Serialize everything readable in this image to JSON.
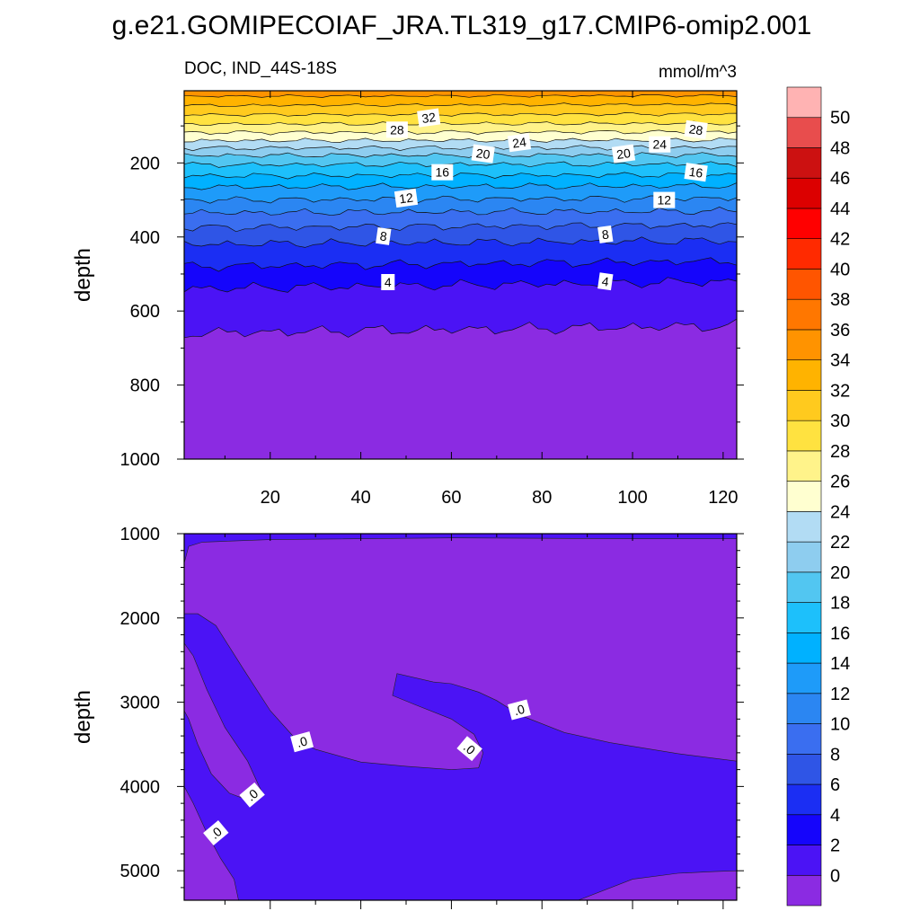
{
  "figure": {
    "title": "g.e21.GOMIPECOIAF_JRA.TL319_g17.CMIP6-omip2.001",
    "variable_label": "DOC, IND_44S-18S",
    "units_label": "mmol/m^3"
  },
  "colorbar": {
    "tick_labels": [
      "0",
      "2",
      "4",
      "6",
      "8",
      "10",
      "12",
      "14",
      "16",
      "18",
      "20",
      "22",
      "24",
      "26",
      "28",
      "30",
      "32",
      "34",
      "36",
      "38",
      "40",
      "42",
      "44",
      "46",
      "48",
      "50"
    ],
    "colors": [
      "#8b2be2",
      "#4b13f5",
      "#1505fb",
      "#1b2ef3",
      "#2f55e6",
      "#3a6ef0",
      "#2b86f2",
      "#1e9bf9",
      "#00b1ff",
      "#1dc0fb",
      "#52c6f1",
      "#8ecdef",
      "#b2dcf4",
      "#ffffd0",
      "#fff38a",
      "#ffe240",
      "#ffca1e",
      "#ffb300",
      "#ff9300",
      "#ff7700",
      "#ff5500",
      "#ff2a00",
      "#ff0000",
      "#dc0000",
      "#cc1111",
      "#e84d4d",
      "#ffb3b3"
    ]
  },
  "chart_data": [
    {
      "type": "contour",
      "panel": "upper",
      "xlabel": "",
      "ylabel": "depth",
      "xlim": [
        1,
        123
      ],
      "ylim": [
        1000,
        5
      ],
      "x_ticks": [
        20,
        40,
        60,
        80,
        100,
        120
      ],
      "x_tick_labels": [
        "20",
        "40",
        "60",
        "80",
        "100",
        "120"
      ],
      "y_ticks": [
        200,
        400,
        600,
        800,
        1000
      ],
      "y_tick_labels": [
        "200",
        "400",
        "600",
        "800",
        "1000"
      ],
      "contour_levels": [
        0,
        2,
        4,
        6,
        8,
        10,
        12,
        14,
        16,
        18,
        20,
        22,
        24,
        26,
        28,
        30,
        32,
        34
      ],
      "isoline_depths": {
        "levels": [
          0,
          2,
          4,
          6,
          8,
          10,
          12,
          14,
          16,
          18,
          20,
          22,
          24,
          26,
          28,
          30,
          32,
          34
        ],
        "left": [
          660,
          540,
          480,
          420,
          375,
          335,
          300,
          265,
          235,
          205,
          180,
          160,
          140,
          118,
          95,
          70,
          45,
          20
        ],
        "right": [
          640,
          520,
          465,
          410,
          368,
          330,
          295,
          262,
          232,
          203,
          178,
          158,
          138,
          116,
          93,
          68,
          42,
          18
        ]
      },
      "contour_labels": [
        {
          "text": "32",
          "x": 55,
          "depth": 78
        },
        {
          "text": "28",
          "x": 48,
          "depth": 110
        },
        {
          "text": "28",
          "x": 114,
          "depth": 110
        },
        {
          "text": "24",
          "x": 75,
          "depth": 145
        },
        {
          "text": "24",
          "x": 106,
          "depth": 150
        },
        {
          "text": "20",
          "x": 67,
          "depth": 175
        },
        {
          "text": "20",
          "x": 98,
          "depth": 175
        },
        {
          "text": "16",
          "x": 58,
          "depth": 225
        },
        {
          "text": "16",
          "x": 114,
          "depth": 225
        },
        {
          "text": "12",
          "x": 50,
          "depth": 295
        },
        {
          "text": "12",
          "x": 107,
          "depth": 300
        },
        {
          "text": "8",
          "x": 45,
          "depth": 398
        },
        {
          "text": "8",
          "x": 94,
          "depth": 393
        },
        {
          "text": "4",
          "x": 46,
          "depth": 522
        },
        {
          "text": "4",
          "x": 94,
          "depth": 520
        }
      ]
    },
    {
      "type": "contour",
      "panel": "lower",
      "xlabel": "",
      "ylabel": "depth",
      "xlim": [
        1,
        123
      ],
      "ylim": [
        5350,
        1000
      ],
      "x_ticks": [
        20,
        40,
        60,
        80,
        100,
        120
      ],
      "y_ticks": [
        1000,
        2000,
        3000,
        4000,
        5000
      ],
      "y_tick_labels": [
        "1000",
        "2000",
        "3000",
        "4000",
        "5000"
      ],
      "contour_labels": [
        {
          "text": ".0",
          "x": 27,
          "depth": 3470
        },
        {
          "text": ".0",
          "x": 16,
          "depth": 4100
        },
        {
          "text": ".0",
          "x": 8,
          "depth": 4550
        },
        {
          "text": ".0",
          "x": 64,
          "depth": 3550
        },
        {
          "text": ".0",
          "x": 75,
          "depth": 3090
        }
      ]
    }
  ]
}
